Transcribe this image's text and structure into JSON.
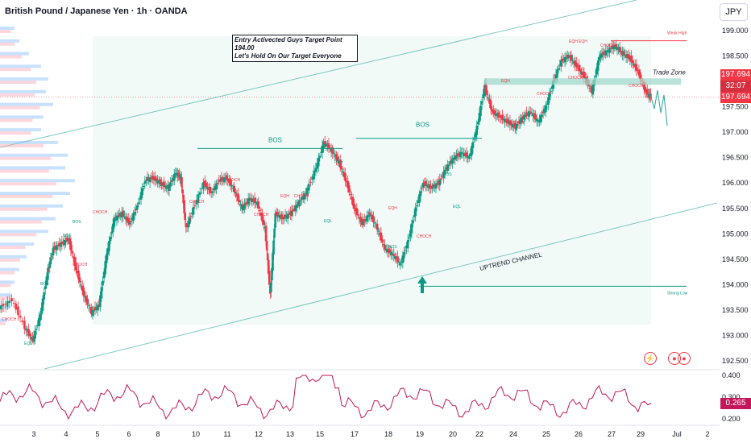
{
  "header": {
    "title": "British Pound / Japanese Yen · 1h · OANDA",
    "currency": "JPY"
  },
  "price_tags": {
    "current": "197.694",
    "countdown": "32:07",
    "last": "197.694"
  },
  "oscillator_tag": "0.265",
  "note": {
    "line1": "Entry Activected Guys Target Point 194.00",
    "line2": "Let's Hold On Our Target Everyone"
  },
  "colors": {
    "bull": "#089981",
    "bear": "#f23645",
    "channel": "#26a69a",
    "accent": "#f23645"
  },
  "icons": [
    "lightning-icon",
    "replay-icon"
  ],
  "chart_data": {
    "type": "candlestick",
    "title": "British Pound / Japanese Yen · 1h · OANDA",
    "xlabel": "",
    "ylabel": "",
    "ylim": [
      192.5,
      199.25
    ],
    "y_ticks": [
      "199.000",
      "198.500",
      "198.000",
      "197.500",
      "197.000",
      "196.500",
      "196.000",
      "195.500",
      "195.000",
      "194.500",
      "194.000",
      "193.500",
      "193.000",
      "192.500"
    ],
    "x_ticks": [
      "3",
      "4",
      "5",
      "6",
      "8",
      "10",
      "11",
      "12",
      "13",
      "15",
      "17",
      "18",
      "19",
      "20",
      "22",
      "24",
      "25",
      "26",
      "27",
      "29",
      "Jul",
      "2"
    ],
    "price_path": [
      [
        0,
        193.55
      ],
      [
        0.5,
        193.7
      ],
      [
        1,
        193.15
      ],
      [
        1.3,
        192.9
      ],
      [
        1.6,
        193.4
      ],
      [
        1.9,
        194.3
      ],
      [
        2.1,
        194.7
      ],
      [
        2.4,
        194.8
      ],
      [
        2.7,
        194.9
      ],
      [
        3.0,
        194.3
      ],
      [
        3.3,
        193.8
      ],
      [
        3.6,
        193.45
      ],
      [
        3.9,
        193.6
      ],
      [
        4.2,
        194.6
      ],
      [
        4.5,
        195.3
      ],
      [
        4.8,
        195.4
      ],
      [
        5.1,
        195.2
      ],
      [
        5.4,
        195.55
      ],
      [
        5.7,
        196.05
      ],
      [
        6.0,
        196.1
      ],
      [
        6.3,
        196.0
      ],
      [
        6.6,
        195.9
      ],
      [
        6.9,
        196.2
      ],
      [
        7.1,
        196.1
      ],
      [
        7.3,
        195.1
      ],
      [
        7.6,
        195.5
      ],
      [
        8.0,
        196.0
      ],
      [
        8.3,
        195.8
      ],
      [
        8.6,
        196.05
      ],
      [
        8.9,
        196.1
      ],
      [
        9.2,
        195.85
      ],
      [
        9.5,
        195.5
      ],
      [
        9.8,
        195.7
      ],
      [
        10.1,
        195.6
      ],
      [
        10.4,
        195.1
      ],
      [
        10.6,
        193.8
      ],
      [
        10.8,
        195.4
      ],
      [
        11.1,
        195.3
      ],
      [
        11.4,
        195.4
      ],
      [
        11.7,
        195.6
      ],
      [
        12.0,
        195.8
      ],
      [
        12.4,
        196.3
      ],
      [
        12.7,
        196.8
      ],
      [
        13.0,
        196.65
      ],
      [
        13.3,
        196.4
      ],
      [
        13.6,
        196.0
      ],
      [
        13.9,
        195.5
      ],
      [
        14.2,
        195.2
      ],
      [
        14.5,
        195.4
      ],
      [
        14.8,
        195.1
      ],
      [
        15.1,
        194.7
      ],
      [
        15.4,
        194.6
      ],
      [
        15.7,
        194.4
      ],
      [
        16.0,
        194.85
      ],
      [
        16.3,
        195.5
      ],
      [
        16.6,
        196.0
      ],
      [
        16.9,
        195.9
      ],
      [
        17.2,
        196.0
      ],
      [
        17.5,
        196.3
      ],
      [
        17.8,
        196.5
      ],
      [
        18.1,
        196.6
      ],
      [
        18.4,
        196.5
      ],
      [
        18.7,
        197.1
      ],
      [
        19.0,
        197.9
      ],
      [
        19.3,
        197.4
      ],
      [
        19.6,
        197.3
      ],
      [
        19.9,
        197.2
      ],
      [
        20.2,
        197.1
      ],
      [
        20.5,
        197.3
      ],
      [
        20.8,
        197.4
      ],
      [
        21.1,
        197.2
      ],
      [
        21.4,
        197.5
      ],
      [
        21.7,
        198.0
      ],
      [
        22.0,
        198.4
      ],
      [
        22.3,
        198.5
      ],
      [
        22.6,
        198.3
      ],
      [
        22.9,
        198.1
      ],
      [
        23.2,
        197.8
      ],
      [
        23.5,
        198.5
      ],
      [
        23.8,
        198.6
      ],
      [
        24.1,
        198.7
      ],
      [
        24.4,
        198.55
      ],
      [
        24.7,
        198.45
      ],
      [
        25.0,
        198.2
      ],
      [
        25.3,
        197.8
      ],
      [
        25.5,
        197.694
      ]
    ],
    "volume_profile": [
      [
        199.0,
        30
      ],
      [
        198.75,
        40
      ],
      [
        198.5,
        60
      ],
      [
        198.25,
        85
      ],
      [
        198.0,
        100
      ],
      [
        197.75,
        95
      ],
      [
        197.5,
        110
      ],
      [
        197.25,
        90
      ],
      [
        197.0,
        85
      ],
      [
        196.75,
        120
      ],
      [
        196.5,
        140
      ],
      [
        196.25,
        135
      ],
      [
        196.0,
        155
      ],
      [
        195.75,
        145
      ],
      [
        195.5,
        130
      ],
      [
        195.25,
        115
      ],
      [
        195.0,
        100
      ],
      [
        194.75,
        70
      ],
      [
        194.5,
        55
      ],
      [
        194.25,
        40
      ],
      [
        194.0,
        30
      ],
      [
        193.75,
        25
      ],
      [
        193.5,
        20
      ],
      [
        193.25,
        15
      ]
    ],
    "annotations": [
      "BOS",
      "BOS",
      "BOS",
      "CHOCH",
      "EQH",
      "EQL",
      "Trade Zone",
      "Weak High",
      "Strong Low",
      "UPTREND CHANNEL"
    ],
    "target_level": 194.0,
    "trade_zone": [
      197.94,
      198.06
    ],
    "weak_high": 198.8,
    "oscillator": {
      "ylim": [
        0.2,
        0.4
      ],
      "y_ticks": [
        "0.400",
        "0.300",
        "0.200"
      ],
      "last": 0.265
    }
  }
}
